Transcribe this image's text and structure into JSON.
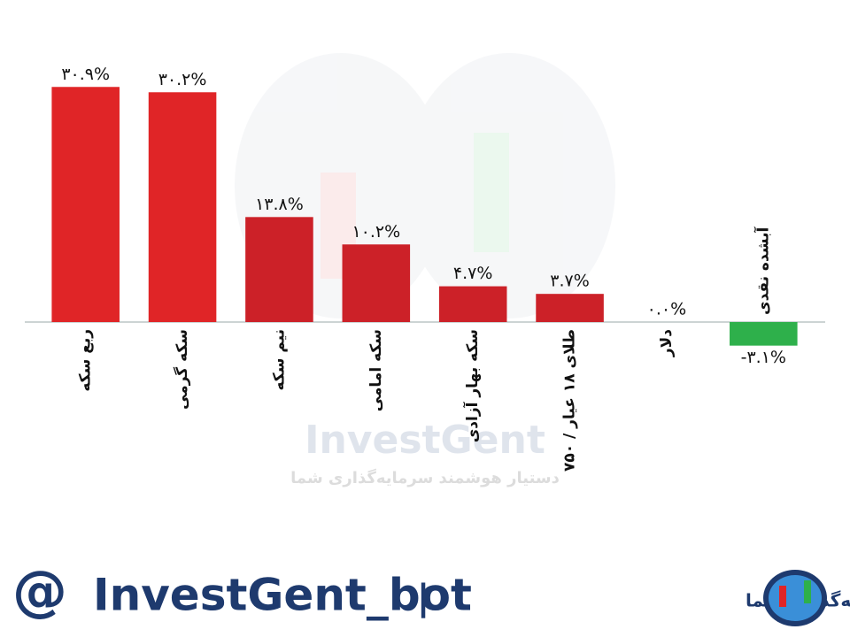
{
  "chart_data": {
    "type": "bar",
    "categories": [
      "ربع سکه",
      "سکه گرمی",
      "نیم سکه",
      "سکه امامی",
      "سکه بهار آزادی",
      "طلای ۱۸ عیار / ۷۵۰",
      "دلار",
      "آبشده نقدی"
    ],
    "values": [
      30.9,
      30.2,
      13.8,
      10.2,
      4.7,
      3.7,
      0.0,
      -3.1
    ],
    "value_labels": [
      "۳۰.۹%",
      "۳۰.۲%",
      "۱۳.۸%",
      "۱۰.۲%",
      "۴.۷%",
      "۳.۷%",
      "۰.۰%",
      "-۳.۱%"
    ],
    "colors": [
      "#e02527",
      "#e02527",
      "#cc2128",
      "#cc2128",
      "#cc2128",
      "#cc2128",
      "#cc2128",
      "#2eb04b"
    ],
    "ylim": [
      -5,
      35
    ]
  },
  "watermark": {
    "title": "InvestGent",
    "subtitle": "دستیار هوشمند سرمایه‌گذاری شما"
  },
  "footer": {
    "at": "@",
    "handle": "InvestGent_bot",
    "separator": "|",
    "tagline": "دستیار هوشمند سرمایه‌گذاری شما"
  }
}
